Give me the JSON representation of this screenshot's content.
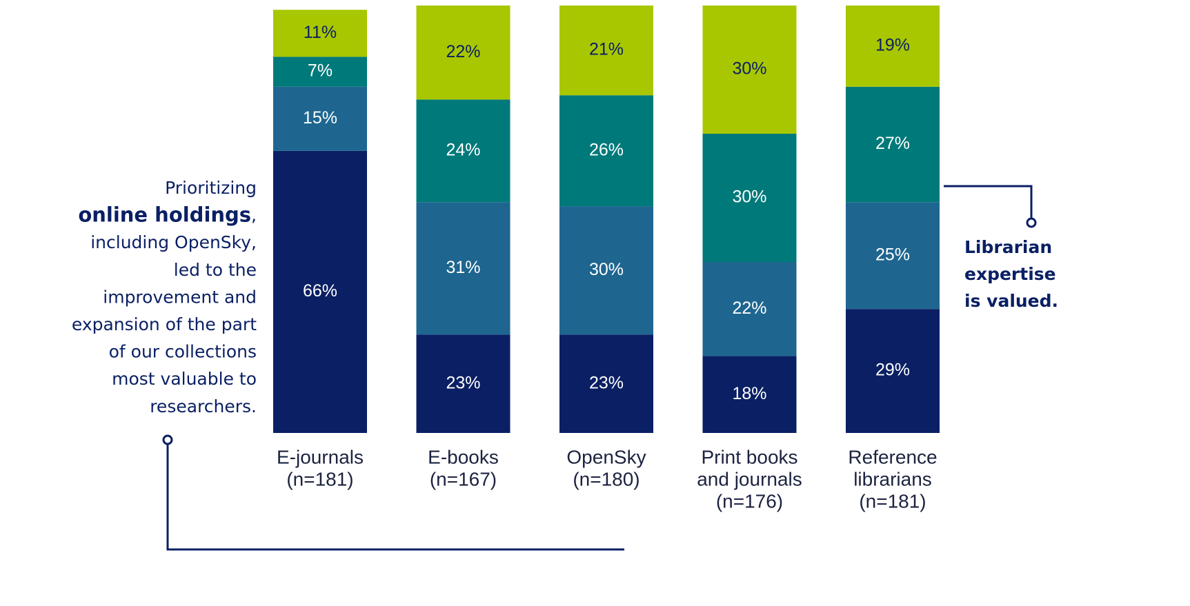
{
  "chart_data": {
    "type": "stacked_bar",
    "categories": [
      [
        "E-journals",
        "(n=181)"
      ],
      [
        "E-books",
        "(n=167)"
      ],
      [
        "OpenSky",
        "(n=180)"
      ],
      [
        "Print books",
        "and journals",
        "(n=176)"
      ],
      [
        "Reference",
        "librarians",
        "(n=181)"
      ]
    ],
    "series": [
      {
        "color": "#0a1f64",
        "label_color": "#ffffff",
        "values": [
          66,
          23,
          23,
          18,
          29
        ],
        "value_labels": [
          "66%",
          "23%",
          "23%",
          "18%",
          "29%"
        ]
      },
      {
        "color": "#1e6690",
        "label_color": "#ffffff",
        "values": [
          15,
          31,
          30,
          22,
          25
        ],
        "value_labels": [
          "15%",
          "31%",
          "30%",
          "22%",
          "25%"
        ]
      },
      {
        "color": "#00797a",
        "label_color": "#ffffff",
        "values": [
          7,
          24,
          26,
          30,
          27
        ],
        "value_labels": [
          "7%",
          "24%",
          "26%",
          "30%",
          "27%"
        ]
      },
      {
        "color": "#a8c700",
        "label_color": "#0a1f64",
        "values": [
          11,
          22,
          21,
          30,
          19
        ],
        "value_labels": [
          "11%",
          "22%",
          "21%",
          "30%",
          "19%"
        ]
      }
    ],
    "ylim": [
      0,
      100
    ],
    "annotations": [
      {
        "lines": [
          "Prioritizing",
          [
            "online holdings",
            ","
          ],
          "including OpenSky,",
          "led to the",
          "improvement and",
          "expansion of the part",
          "of our collections",
          "most valuable to",
          "researchers."
        ]
      },
      {
        "lines": [
          "Librarian",
          "expertise",
          "is valued."
        ]
      }
    ]
  }
}
